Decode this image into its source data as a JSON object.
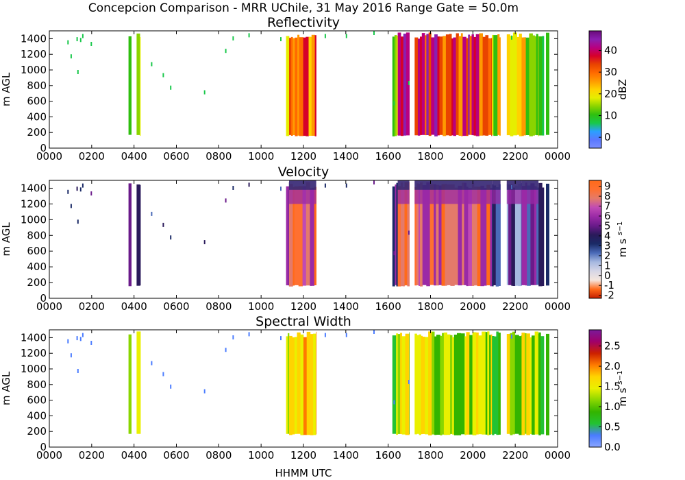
{
  "figure": {
    "suptitle": "Concepcion Comparison - MRR UChile, 31 May 2016 Range Gate = 50.0m",
    "xlabel": "HHMM UTC"
  },
  "chart_data": [
    {
      "type": "heatmap",
      "title": "Reflectivity",
      "ylabel": "m AGL",
      "x_ticks": [
        "0000",
        "0200",
        "0400",
        "0600",
        "0800",
        "1000",
        "1200",
        "1400",
        "1600",
        "1800",
        "2000",
        "2200",
        "0000"
      ],
      "y_ticks": [
        0,
        200,
        400,
        600,
        800,
        1000,
        1200,
        1400
      ],
      "ylim": [
        0,
        1500
      ],
      "colorbar": {
        "label": "dBZ",
        "ticks": [
          "0",
          "10",
          "20",
          "30",
          "40"
        ],
        "range": [
          -5,
          49
        ],
        "tick_values": [
          0,
          10,
          20,
          30,
          40
        ]
      },
      "precip_periods_hhmm": [
        [
          "0345",
          "0400"
        ],
        [
          "0415",
          "0430"
        ],
        [
          "1115",
          "1300"
        ],
        [
          "1615",
          "2345"
        ]
      ]
    },
    {
      "type": "heatmap",
      "title": "Velocity",
      "ylabel": "m s$^{-1}$",
      "ylabel_left": "m AGL",
      "x_ticks": [
        "0000",
        "0200",
        "0400",
        "0600",
        "0800",
        "1000",
        "1200",
        "1400",
        "1600",
        "1800",
        "2000",
        "2200",
        "0000"
      ],
      "y_ticks": [
        0,
        200,
        400,
        600,
        800,
        1000,
        1200,
        1400
      ],
      "ylim": [
        0,
        1500
      ],
      "colorbar": {
        "label_main": "m s",
        "label_sup": "−1",
        "ticks": [
          "-2",
          "-1",
          "0",
          "1",
          "2",
          "3",
          "4",
          "5",
          "6",
          "7",
          "8",
          "9"
        ],
        "range": [
          -2.3,
          9.6
        ],
        "tick_values": [
          -2,
          -1,
          0,
          1,
          2,
          3,
          4,
          5,
          6,
          7,
          8,
          9
        ]
      }
    },
    {
      "type": "heatmap",
      "title": "Spectral Width",
      "ylabel_left": "m AGL",
      "x_ticks": [
        "0000",
        "0200",
        "0400",
        "0600",
        "0800",
        "1000",
        "1200",
        "1400",
        "1600",
        "1800",
        "2000",
        "2200",
        "0000"
      ],
      "y_ticks": [
        0,
        200,
        400,
        600,
        800,
        1000,
        1200,
        1400
      ],
      "ylim": [
        0,
        1500
      ],
      "colorbar": {
        "label_main": "m s",
        "label_sup": "−1",
        "ticks": [
          "0.0",
          "0.5",
          "1.0",
          "1.5",
          "2.0",
          "2.5"
        ],
        "range": [
          0,
          2.9
        ],
        "tick_values": [
          0,
          0.5,
          1.0,
          1.5,
          2.0,
          2.5
        ]
      }
    }
  ],
  "colors": {
    "refl_scale": [
      "#7a8fff",
      "#5a78ff",
      "#2aa0ff",
      "#18c84a",
      "#2fbf0f",
      "#8ad400",
      "#e6ee00",
      "#ffd200",
      "#ff9a00",
      "#ff6a00",
      "#e94400",
      "#d6002a",
      "#b80080",
      "#8a1fb0",
      "#6a0a7a"
    ],
    "vel_scale": [
      "#c41e00",
      "#ff6a1a",
      "#f5e6de",
      "#d6d6e6",
      "#a6b8e0",
      "#4a6ab8",
      "#1a2a66",
      "#2a1a5a",
      "#6a1a8a",
      "#9a2aa6",
      "#c04ab4",
      "#e47a6a",
      "#ff7030",
      "#ff6a1a"
    ],
    "sw_scale": [
      "#8aa6ff",
      "#4a7cff",
      "#23c233",
      "#33b400",
      "#89d600",
      "#eaf000",
      "#ffd400",
      "#ff7a00",
      "#cc2000",
      "#a0006a",
      "#7a1a9a"
    ]
  }
}
